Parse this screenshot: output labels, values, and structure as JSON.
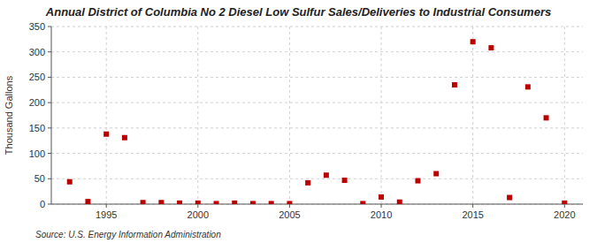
{
  "chart_data": {
    "type": "scatter",
    "title": "Annual District of Columbia No 2 Diesel Low Sulfur Sales/Deliveries to Industrial Consumers",
    "ylabel": "Thousand Gallons",
    "source": "Source: U.S. Energy Information Administration",
    "x": [
      1993,
      1994,
      1995,
      1996,
      1997,
      1998,
      1999,
      2000,
      2001,
      2002,
      2003,
      2004,
      2005,
      2006,
      2007,
      2008,
      2009,
      2010,
      2011,
      2012,
      2013,
      2014,
      2015,
      2016,
      2017,
      2018,
      2019,
      2020
    ],
    "values": [
      44,
      5,
      138,
      131,
      3,
      3,
      2,
      2,
      1,
      2,
      1,
      1,
      1,
      42,
      57,
      47,
      1,
      14,
      4,
      46,
      60,
      235,
      320,
      308,
      13,
      231,
      170,
      2
    ],
    "color": "#bb0000",
    "marker": "square",
    "xlim": [
      1992,
      2021
    ],
    "ylim": [
      0,
      350
    ],
    "xticks": [
      1995,
      2000,
      2005,
      2010,
      2015,
      2020
    ],
    "yticks": [
      0,
      50,
      100,
      150,
      200,
      250,
      300,
      350
    ],
    "grid": true
  }
}
